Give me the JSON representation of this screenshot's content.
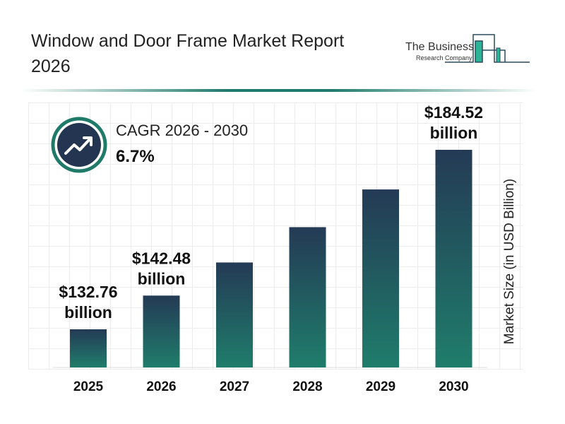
{
  "title": "Window and Door Frame Market Report 2026",
  "logo": {
    "line1": "The Business",
    "line2": "Research Company"
  },
  "cagr": {
    "label": "CAGR 2026 - 2030",
    "value": "6.7%",
    "icon": "trending-up-icon"
  },
  "colors": {
    "bar_top": "#243a55",
    "bar_bottom": "#1f7d6b",
    "accent": "#1f7a6a",
    "icon_bg": "#233550"
  },
  "chart_data": {
    "type": "bar",
    "categories": [
      "2025",
      "2026",
      "2027",
      "2028",
      "2029",
      "2030"
    ],
    "values": [
      132.76,
      142.48,
      152.03,
      162.22,
      173.09,
      184.52
    ],
    "data_labels": [
      {
        "index": 0,
        "line1": "$132.76",
        "line2": "billion"
      },
      {
        "index": 1,
        "line1": "$142.48",
        "line2": "billion"
      },
      {
        "index": 5,
        "line1": "$184.52",
        "line2": "billion"
      }
    ],
    "title": "Window and Door Frame Market Report 2026",
    "xlabel": "",
    "ylabel": "Market Size (in USD Billion)",
    "grid": true,
    "legend": "none"
  }
}
